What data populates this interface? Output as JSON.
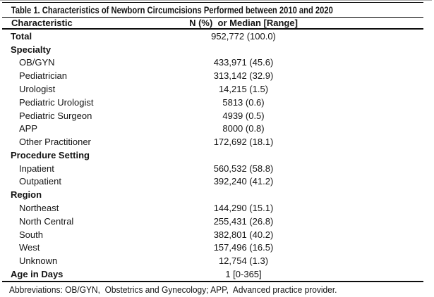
{
  "table": {
    "title": "Table 1. Characteristics of Newborn Circumcisions Performed between 2010 and 2020",
    "columns": {
      "characteristic": "Characteristic",
      "value": "N (%)  or Median [Range]"
    },
    "rows": [
      {
        "label": "Total",
        "value": "952,772 (100.0)",
        "style": "category"
      },
      {
        "label": "Specialty",
        "value": "",
        "style": "category"
      },
      {
        "label": "OB/GYN",
        "value": "433,971 (45.6)",
        "style": "sub"
      },
      {
        "label": "Pediatrician",
        "value": "313,142 (32.9)",
        "style": "sub"
      },
      {
        "label": "Urologist",
        "value": "14,215 (1.5)",
        "style": "sub"
      },
      {
        "label": "Pediatric Urologist",
        "value": "5813 (0.6)",
        "style": "sub"
      },
      {
        "label": "Pediatric Surgeon",
        "value": "4939 (0.5)",
        "style": "sub"
      },
      {
        "label": "APP",
        "value": "8000 (0.8)",
        "style": "sub"
      },
      {
        "label": "Other Practitioner",
        "value": "172,692 (18.1)",
        "style": "sub"
      },
      {
        "label": "Procedure Setting",
        "value": "",
        "style": "category"
      },
      {
        "label": "Inpatient",
        "value": "560,532 (58.8)",
        "style": "sub"
      },
      {
        "label": "Outpatient",
        "value": "392,240 (41.2)",
        "style": "sub"
      },
      {
        "label": "Region",
        "value": "",
        "style": "category"
      },
      {
        "label": "Northeast",
        "value": "144,290 (15.1)",
        "style": "sub"
      },
      {
        "label": "North Central",
        "value": "255,431 (26.8)",
        "style": "sub"
      },
      {
        "label": "South",
        "value": "382,801 (40.2)",
        "style": "sub"
      },
      {
        "label": "West",
        "value": "157,496 (16.5)",
        "style": "sub"
      },
      {
        "label": "Unknown",
        "value": "12,754 (1.3)",
        "style": "sub"
      },
      {
        "label": "Age in Days",
        "value": "1 [0-365]",
        "style": "category"
      }
    ],
    "footnote": "Abbreviations: OB/GYN,  Obstetrics and Gynecology; APP,  Advanced practice provider.",
    "colors": {
      "text": "#141414",
      "rule": "#0d0d0d",
      "edge_line": "#a9a9a9",
      "background": "#ffffff"
    }
  }
}
